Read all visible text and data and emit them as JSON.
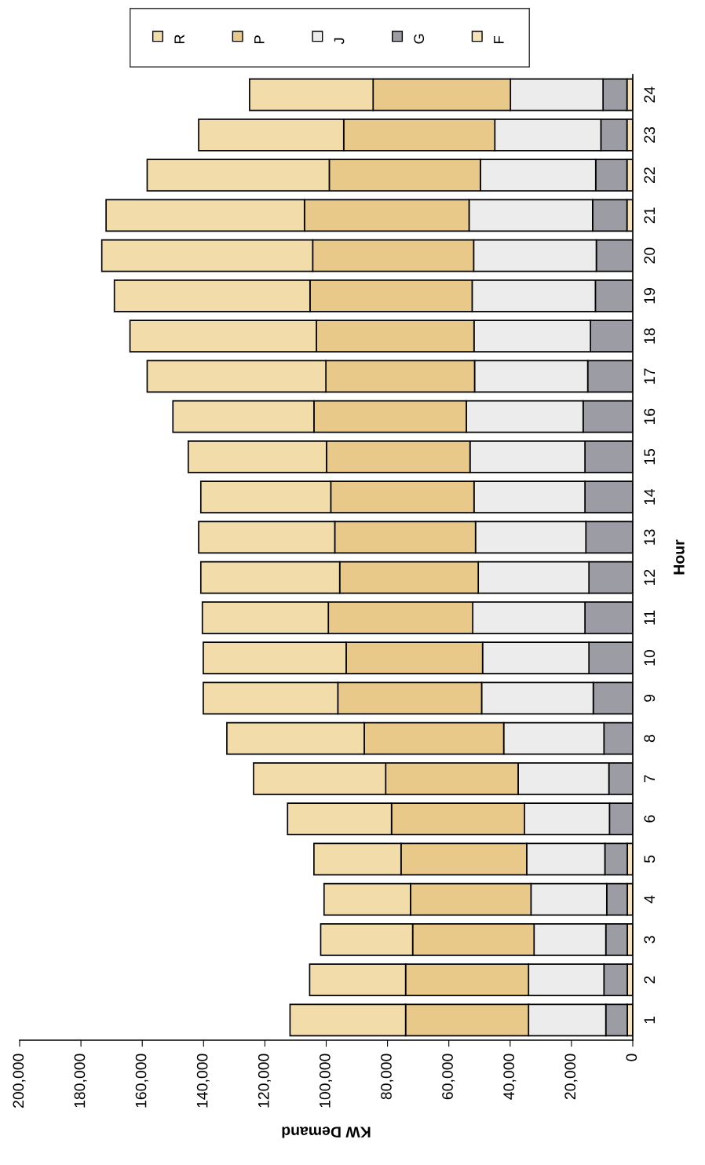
{
  "chart_data": {
    "type": "bar",
    "orientation": "horizontal",
    "stacked": true,
    "xlabel": "KW Demand",
    "ylabel": "Hour",
    "categories": [
      "24",
      "23",
      "22",
      "21",
      "20",
      "19",
      "18",
      "17",
      "16",
      "15",
      "14",
      "13",
      "12",
      "11",
      "10",
      "9",
      "8",
      "7",
      "6",
      "5",
      "4",
      "3",
      "2",
      "1"
    ],
    "series": [
      {
        "name": "F",
        "color": "#f5e2b8",
        "values": [
          1900,
          1900,
          1900,
          1900,
          null,
          0,
          0,
          0,
          0,
          0,
          0,
          0,
          0,
          0,
          0,
          0,
          0,
          0,
          null,
          1800,
          1800,
          1800,
          1800,
          1800
        ]
      },
      {
        "name": "G",
        "color": "#9c9ca4",
        "values": [
          7800,
          8500,
          10200,
          11200,
          11900,
          12200,
          13800,
          14700,
          16200,
          15600,
          15600,
          15300,
          14300,
          15600,
          14300,
          12900,
          9400,
          7800,
          7600,
          7300,
          6700,
          7000,
          7600,
          7000
        ]
      },
      {
        "name": "J",
        "color": "#ececec",
        "values": [
          30200,
          34600,
          37600,
          40300,
          40000,
          40200,
          38000,
          36900,
          38100,
          37500,
          36200,
          36000,
          36100,
          36600,
          34700,
          36400,
          32700,
          29600,
          27700,
          25500,
          24700,
          23400,
          24600,
          25200
        ]
      },
      {
        "name": "P",
        "color": "#e8c98a",
        "values": [
          44800,
          49300,
          49300,
          53700,
          52500,
          52900,
          51400,
          48500,
          49700,
          46800,
          46700,
          45900,
          45200,
          47100,
          44500,
          46900,
          45500,
          43200,
          43400,
          41000,
          39300,
          39600,
          40100,
          40100
        ]
      },
      {
        "name": "R",
        "color": "#f2dcaa",
        "values": [
          40300,
          47300,
          59400,
          64700,
          68800,
          63800,
          60800,
          58300,
          46000,
          45100,
          42400,
          44400,
          45300,
          41100,
          46600,
          43900,
          44800,
          43100,
          33900,
          28400,
          28200,
          30000,
          31300,
          37700
        ]
      }
    ],
    "xlim": [
      200000,
      0
    ],
    "xticks": [
      {
        "value": 200000,
        "label": "200,000"
      },
      {
        "value": 180000,
        "label": "180,000"
      },
      {
        "value": 160000,
        "label": "160,000"
      },
      {
        "value": 140000,
        "label": "140,000"
      },
      {
        "value": 120000,
        "label": "120,000"
      },
      {
        "value": 100000,
        "label": "100,000"
      },
      {
        "value": 80000,
        "label": "80,000"
      },
      {
        "value": 60000,
        "label": "60,000"
      },
      {
        "value": 40000,
        "label": "40,000"
      },
      {
        "value": 20000,
        "label": "20,000"
      },
      0
    ],
    "grid": false,
    "legend": "top"
  }
}
